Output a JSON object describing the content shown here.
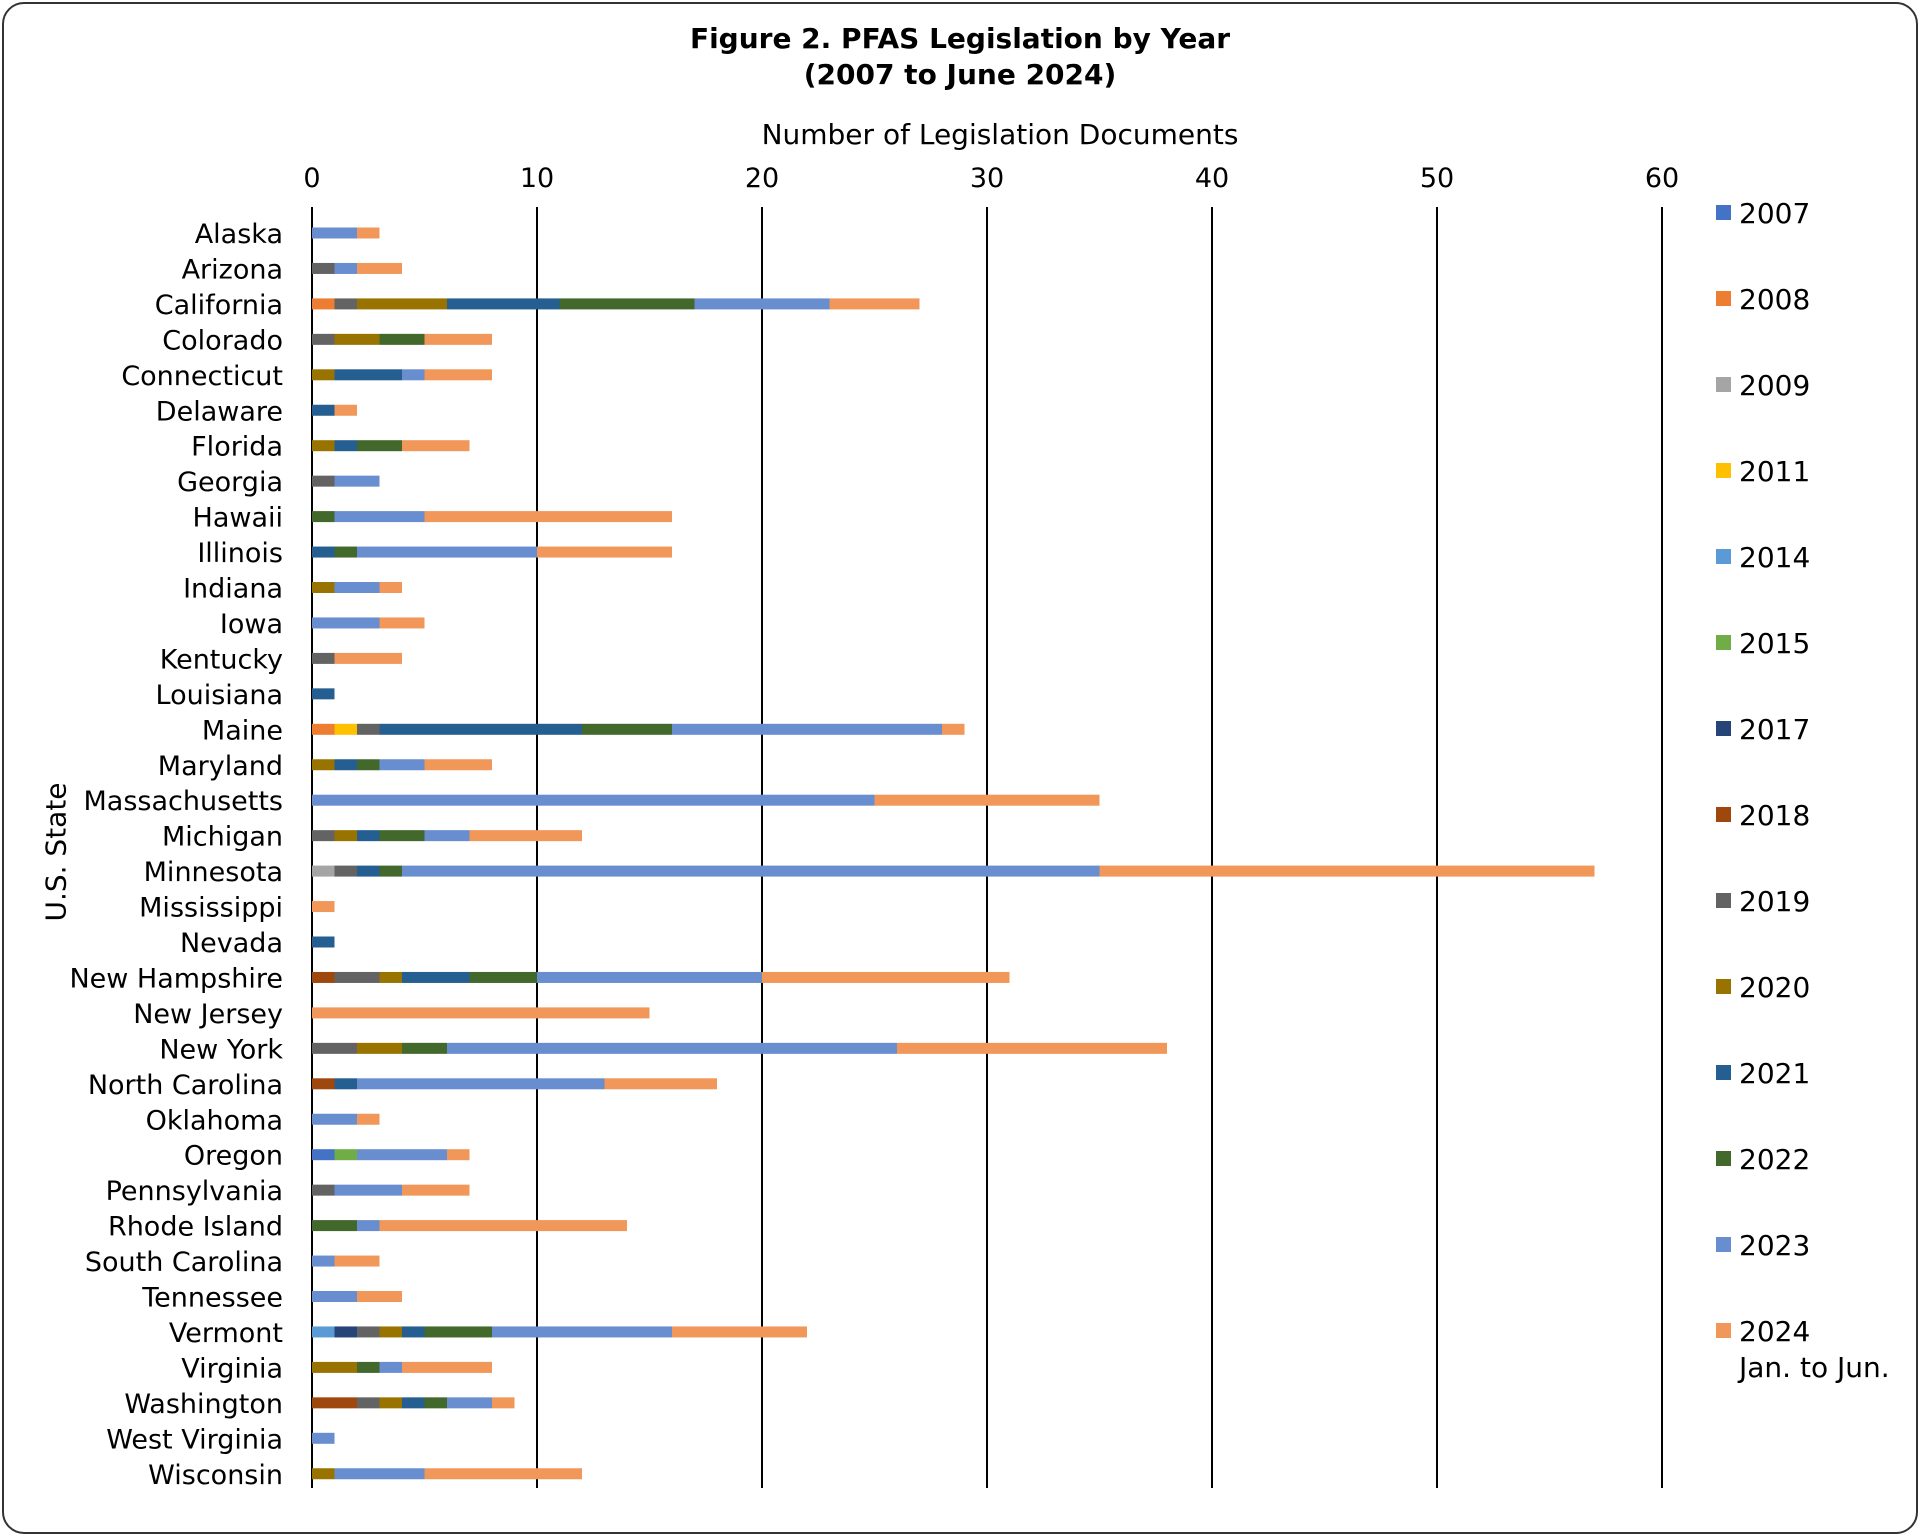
{
  "chart_data": {
    "type": "bar",
    "orientation": "horizontal",
    "stacked": true,
    "title": "Figure 2. PFAS Legislation by Year",
    "subtitle": "(2007 to June 2024)",
    "xlabel": "Number of Legislation Documents",
    "ylabel": "U.S. State",
    "xlim": [
      0,
      60
    ],
    "x_ticks": [
      0,
      10,
      20,
      30,
      40,
      50,
      60
    ],
    "grid": "vertical",
    "legend_position": "right",
    "categories": [
      "Alaska",
      "Arizona",
      "California",
      "Colorado",
      "Connecticut",
      "Delaware",
      "Florida",
      "Georgia",
      "Hawaii",
      "Illinois",
      "Indiana",
      "Iowa",
      "Kentucky",
      "Louisiana",
      "Maine",
      "Maryland",
      "Massachusetts",
      "Michigan",
      "Minnesota",
      "Mississippi",
      "Nevada",
      "New Hampshire",
      "New Jersey",
      "New York",
      "North Carolina",
      "Oklahoma",
      "Oregon",
      "Pennsylvania",
      "Rhode Island",
      "South Carolina",
      "Tennessee",
      "Vermont",
      "Virginia",
      "Washington",
      "West Virginia",
      "Wisconsin"
    ],
    "series": [
      {
        "name": "2007",
        "color": "#4472C4",
        "values": [
          0,
          0,
          0,
          0,
          0,
          0,
          0,
          0,
          0,
          0,
          0,
          0,
          0,
          0,
          0,
          0,
          0,
          0,
          0,
          0,
          0,
          0,
          0,
          0,
          0,
          0,
          1,
          0,
          0,
          0,
          0,
          0,
          0,
          0,
          0,
          0
        ]
      },
      {
        "name": "2008",
        "color": "#ED7D31",
        "values": [
          0,
          0,
          1,
          0,
          0,
          0,
          0,
          0,
          0,
          0,
          0,
          0,
          0,
          0,
          1,
          0,
          0,
          0,
          0,
          0,
          0,
          0,
          0,
          0,
          0,
          0,
          0,
          0,
          0,
          0,
          0,
          0,
          0,
          0,
          0,
          0
        ]
      },
      {
        "name": "2009",
        "color": "#A5A5A5",
        "values": [
          0,
          0,
          0,
          0,
          0,
          0,
          0,
          0,
          0,
          0,
          0,
          0,
          0,
          0,
          0,
          0,
          0,
          0,
          1,
          0,
          0,
          0,
          0,
          0,
          0,
          0,
          0,
          0,
          0,
          0,
          0,
          0,
          0,
          0,
          0,
          0
        ]
      },
      {
        "name": "2011",
        "color": "#FFC000",
        "values": [
          0,
          0,
          0,
          0,
          0,
          0,
          0,
          0,
          0,
          0,
          0,
          0,
          0,
          0,
          1,
          0,
          0,
          0,
          0,
          0,
          0,
          0,
          0,
          0,
          0,
          0,
          0,
          0,
          0,
          0,
          0,
          0,
          0,
          0,
          0,
          0
        ]
      },
      {
        "name": "2014",
        "color": "#5B9BD5",
        "values": [
          0,
          0,
          0,
          0,
          0,
          0,
          0,
          0,
          0,
          0,
          0,
          0,
          0,
          0,
          0,
          0,
          0,
          0,
          0,
          0,
          0,
          0,
          0,
          0,
          0,
          0,
          0,
          0,
          0,
          0,
          0,
          1,
          0,
          0,
          0,
          0
        ]
      },
      {
        "name": "2015",
        "color": "#70AD47",
        "values": [
          0,
          0,
          0,
          0,
          0,
          0,
          0,
          0,
          0,
          0,
          0,
          0,
          0,
          0,
          0,
          0,
          0,
          0,
          0,
          0,
          0,
          0,
          0,
          0,
          0,
          0,
          1,
          0,
          0,
          0,
          0,
          0,
          0,
          0,
          0,
          0
        ]
      },
      {
        "name": "2017",
        "color": "#264478",
        "values": [
          0,
          0,
          0,
          0,
          0,
          0,
          0,
          0,
          0,
          0,
          0,
          0,
          0,
          0,
          0,
          0,
          0,
          0,
          0,
          0,
          0,
          0,
          0,
          0,
          0,
          0,
          0,
          0,
          0,
          0,
          0,
          1,
          0,
          0,
          0,
          0
        ]
      },
      {
        "name": "2018",
        "color": "#9E480E",
        "values": [
          0,
          0,
          0,
          0,
          0,
          0,
          0,
          0,
          0,
          0,
          0,
          0,
          0,
          0,
          0,
          0,
          0,
          0,
          0,
          0,
          0,
          1,
          0,
          0,
          1,
          0,
          0,
          0,
          0,
          0,
          0,
          0,
          0,
          2,
          0,
          0
        ]
      },
      {
        "name": "2019",
        "color": "#636363",
        "values": [
          0,
          1,
          1,
          1,
          0,
          0,
          0,
          1,
          0,
          0,
          0,
          0,
          1,
          0,
          1,
          0,
          0,
          1,
          1,
          0,
          0,
          2,
          0,
          2,
          0,
          0,
          0,
          1,
          0,
          0,
          0,
          1,
          0,
          1,
          0,
          0
        ]
      },
      {
        "name": "2020",
        "color": "#997300",
        "values": [
          0,
          0,
          4,
          2,
          1,
          0,
          1,
          0,
          0,
          0,
          1,
          0,
          0,
          0,
          0,
          1,
          0,
          1,
          0,
          0,
          0,
          1,
          0,
          2,
          0,
          0,
          0,
          0,
          0,
          0,
          0,
          1,
          2,
          1,
          0,
          1
        ]
      },
      {
        "name": "2021",
        "color": "#255E91",
        "values": [
          0,
          0,
          5,
          0,
          3,
          1,
          1,
          0,
          0,
          1,
          0,
          0,
          0,
          1,
          9,
          1,
          0,
          1,
          1,
          0,
          1,
          3,
          0,
          0,
          1,
          0,
          0,
          0,
          0,
          0,
          0,
          1,
          0,
          1,
          0,
          0
        ]
      },
      {
        "name": "2022",
        "color": "#43682B",
        "values": [
          0,
          0,
          6,
          2,
          0,
          0,
          2,
          0,
          1,
          1,
          0,
          0,
          0,
          0,
          4,
          1,
          0,
          2,
          1,
          0,
          0,
          3,
          0,
          2,
          0,
          0,
          0,
          0,
          2,
          0,
          0,
          3,
          1,
          1,
          0,
          0
        ]
      },
      {
        "name": "2023",
        "color": "#698ED0",
        "values": [
          2,
          1,
          6,
          0,
          1,
          0,
          0,
          2,
          4,
          8,
          2,
          3,
          0,
          0,
          12,
          2,
          25,
          2,
          31,
          0,
          0,
          10,
          0,
          20,
          11,
          2,
          4,
          3,
          1,
          1,
          2,
          8,
          1,
          2,
          1,
          4
        ]
      },
      {
        "name": "2024",
        "name_line2": "Jan. to Jun.",
        "color": "#F1975A",
        "values": [
          1,
          2,
          4,
          3,
          3,
          1,
          3,
          0,
          11,
          6,
          1,
          2,
          3,
          0,
          1,
          3,
          10,
          5,
          22,
          1,
          0,
          11,
          15,
          12,
          5,
          1,
          1,
          3,
          11,
          2,
          2,
          6,
          4,
          1,
          0,
          7
        ]
      }
    ]
  }
}
